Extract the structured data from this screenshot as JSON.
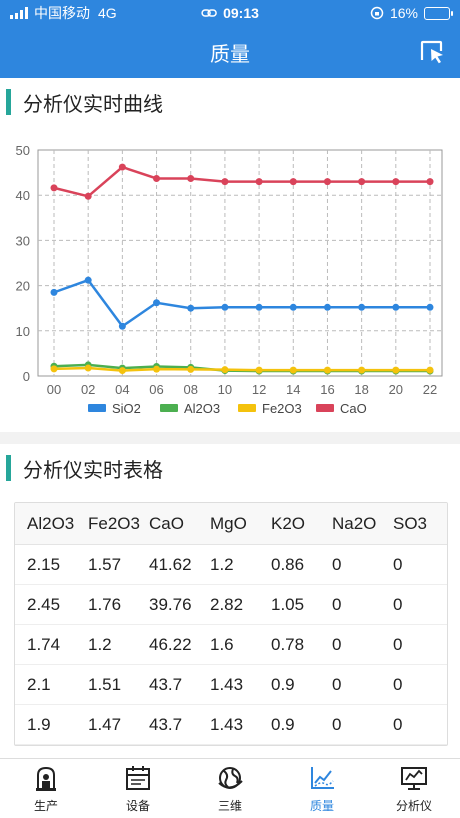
{
  "status": {
    "carrier": "中国移动",
    "network": "4G",
    "time": "09:13",
    "battery": "16%",
    "battery_level": 0.16
  },
  "header": {
    "title": "质量"
  },
  "sections": {
    "chart_title": "分析仪实时曲线",
    "table_title": "分析仪实时表格"
  },
  "chart_data": {
    "type": "line",
    "x": [
      "00",
      "02",
      "04",
      "06",
      "08",
      "10",
      "12",
      "14",
      "16",
      "18",
      "20",
      "22"
    ],
    "ylim": [
      0,
      50
    ],
    "yticks": [
      0,
      10,
      20,
      30,
      40,
      50
    ],
    "grid": true,
    "legend_position": "bottom",
    "series": [
      {
        "name": "SiO2",
        "color": "#2e86de",
        "values": [
          18.5,
          21.2,
          11,
          16.2,
          15,
          15.2,
          15.2,
          15.2,
          15.2,
          15.2,
          15.2,
          15.2
        ]
      },
      {
        "name": "Al2O3",
        "color": "#4caf50",
        "values": [
          2.15,
          2.45,
          1.74,
          2.1,
          1.9,
          1.2,
          1.1,
          1.1,
          1.1,
          1.1,
          1.1,
          1.1
        ]
      },
      {
        "name": "Fe2O3",
        "color": "#f4c20d",
        "values": [
          1.57,
          1.76,
          1.2,
          1.51,
          1.47,
          1.4,
          1.3,
          1.3,
          1.3,
          1.3,
          1.3,
          1.3
        ]
      },
      {
        "name": "CaO",
        "color": "#d9435a",
        "values": [
          41.62,
          39.76,
          46.22,
          43.7,
          43.7,
          43,
          43,
          43,
          43,
          43,
          43,
          43
        ]
      }
    ]
  },
  "table": {
    "headers": [
      "Al2O3",
      "Fe2O3",
      "CaO",
      "MgO",
      "K2O",
      "Na2O",
      "SO3"
    ],
    "rows": [
      [
        "2.15",
        "1.57",
        "41.62",
        "1.2",
        "0.86",
        "0",
        "0"
      ],
      [
        "2.45",
        "1.76",
        "39.76",
        "2.82",
        "1.05",
        "0",
        "0"
      ],
      [
        "1.74",
        "1.2",
        "46.22",
        "1.6",
        "0.78",
        "0",
        "0"
      ],
      [
        "2.1",
        "1.51",
        "43.7",
        "1.43",
        "0.9",
        "0",
        "0"
      ],
      [
        "1.9",
        "1.47",
        "43.7",
        "1.43",
        "0.9",
        "0",
        "0"
      ]
    ]
  },
  "tabs": [
    {
      "label": "生产",
      "icon": "factory-icon",
      "active": false
    },
    {
      "label": "设备",
      "icon": "calendar-icon",
      "active": false
    },
    {
      "label": "三维",
      "icon": "globe-icon",
      "active": false
    },
    {
      "label": "质量",
      "icon": "chart-icon",
      "active": true
    },
    {
      "label": "分析仪",
      "icon": "monitor-icon",
      "active": false
    }
  ],
  "colors": {
    "primary": "#2e86de",
    "accent_bar": "#26a69a"
  }
}
